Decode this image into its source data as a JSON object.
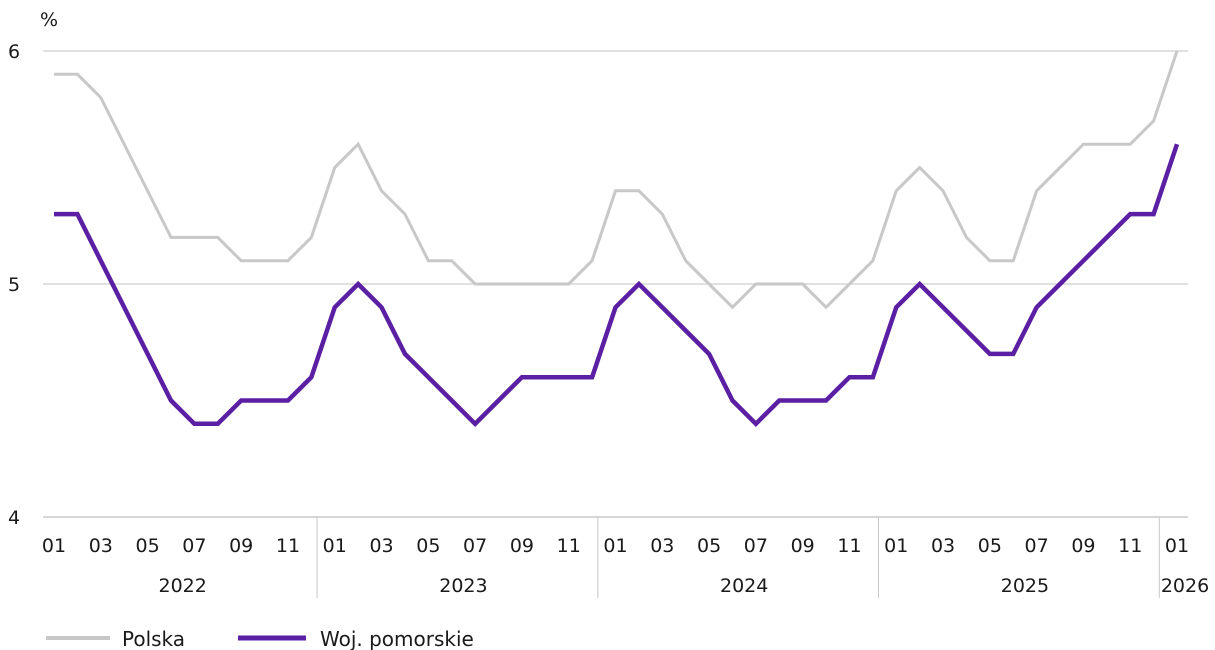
{
  "chart_data": {
    "type": "line",
    "ylabel": "%",
    "ylim": [
      4,
      6
    ],
    "yticks": [
      "4",
      "5",
      "6"
    ],
    "x": [
      "2022-01",
      "2022-02",
      "2022-03",
      "2022-04",
      "2022-05",
      "2022-06",
      "2022-07",
      "2022-08",
      "2022-09",
      "2022-10",
      "2022-11",
      "2022-12",
      "2023-01",
      "2023-02",
      "2023-03",
      "2023-04",
      "2023-05",
      "2023-06",
      "2023-07",
      "2023-08",
      "2023-09",
      "2023-10",
      "2023-11",
      "2023-12",
      "2024-01",
      "2024-02",
      "2024-03",
      "2024-04",
      "2024-05",
      "2024-06",
      "2024-07",
      "2024-08",
      "2024-09",
      "2024-10",
      "2024-11",
      "2024-12",
      "2025-01",
      "2025-02",
      "2025-03",
      "2025-04",
      "2025-05",
      "2025-06",
      "2025-07",
      "2025-08",
      "2025-09",
      "2025-10",
      "2025-11",
      "2025-12",
      "2026-01"
    ],
    "month_tick_labels": [
      "01",
      "03",
      "05",
      "07",
      "09",
      "11",
      "01",
      "03",
      "05",
      "07",
      "09",
      "11",
      "01",
      "03",
      "05",
      "07",
      "09",
      "11",
      "01",
      "03",
      "05",
      "07",
      "09",
      "11",
      "01"
    ],
    "years": [
      "2022",
      "2023",
      "2024",
      "2025",
      "2026"
    ],
    "grid": true,
    "legend_position": "bottom-left",
    "series": [
      {
        "name": "Polska",
        "color": "#c8c8c8",
        "values": [
          5.9,
          5.9,
          5.8,
          5.6,
          5.4,
          5.2,
          5.2,
          5.2,
          5.1,
          5.1,
          5.1,
          5.2,
          5.5,
          5.6,
          5.4,
          5.3,
          5.1,
          5.1,
          5.0,
          5.0,
          5.0,
          5.0,
          5.0,
          5.1,
          5.4,
          5.4,
          5.3,
          5.1,
          5.0,
          4.9,
          5.0,
          5.0,
          5.0,
          4.9,
          5.0,
          5.1,
          5.4,
          5.5,
          5.4,
          5.2,
          5.1,
          5.1,
          5.4,
          5.5,
          5.6,
          5.6,
          5.6,
          5.7,
          6.0
        ]
      },
      {
        "name": "Woj. pomorskie",
        "color": "#5b1fa3",
        "values": [
          5.3,
          5.3,
          5.1,
          4.9,
          4.7,
          4.5,
          4.4,
          4.4,
          4.5,
          4.5,
          4.5,
          4.6,
          4.9,
          5.0,
          4.9,
          4.7,
          4.6,
          4.5,
          4.4,
          4.5,
          4.6,
          4.6,
          4.6,
          4.6,
          4.9,
          5.0,
          4.9,
          4.8,
          4.7,
          4.5,
          4.4,
          4.5,
          4.5,
          4.5,
          4.6,
          4.6,
          4.9,
          5.0,
          4.9,
          4.8,
          4.7,
          4.7,
          4.9,
          5.0,
          5.1,
          5.2,
          5.3,
          5.3,
          5.6
        ]
      }
    ]
  }
}
